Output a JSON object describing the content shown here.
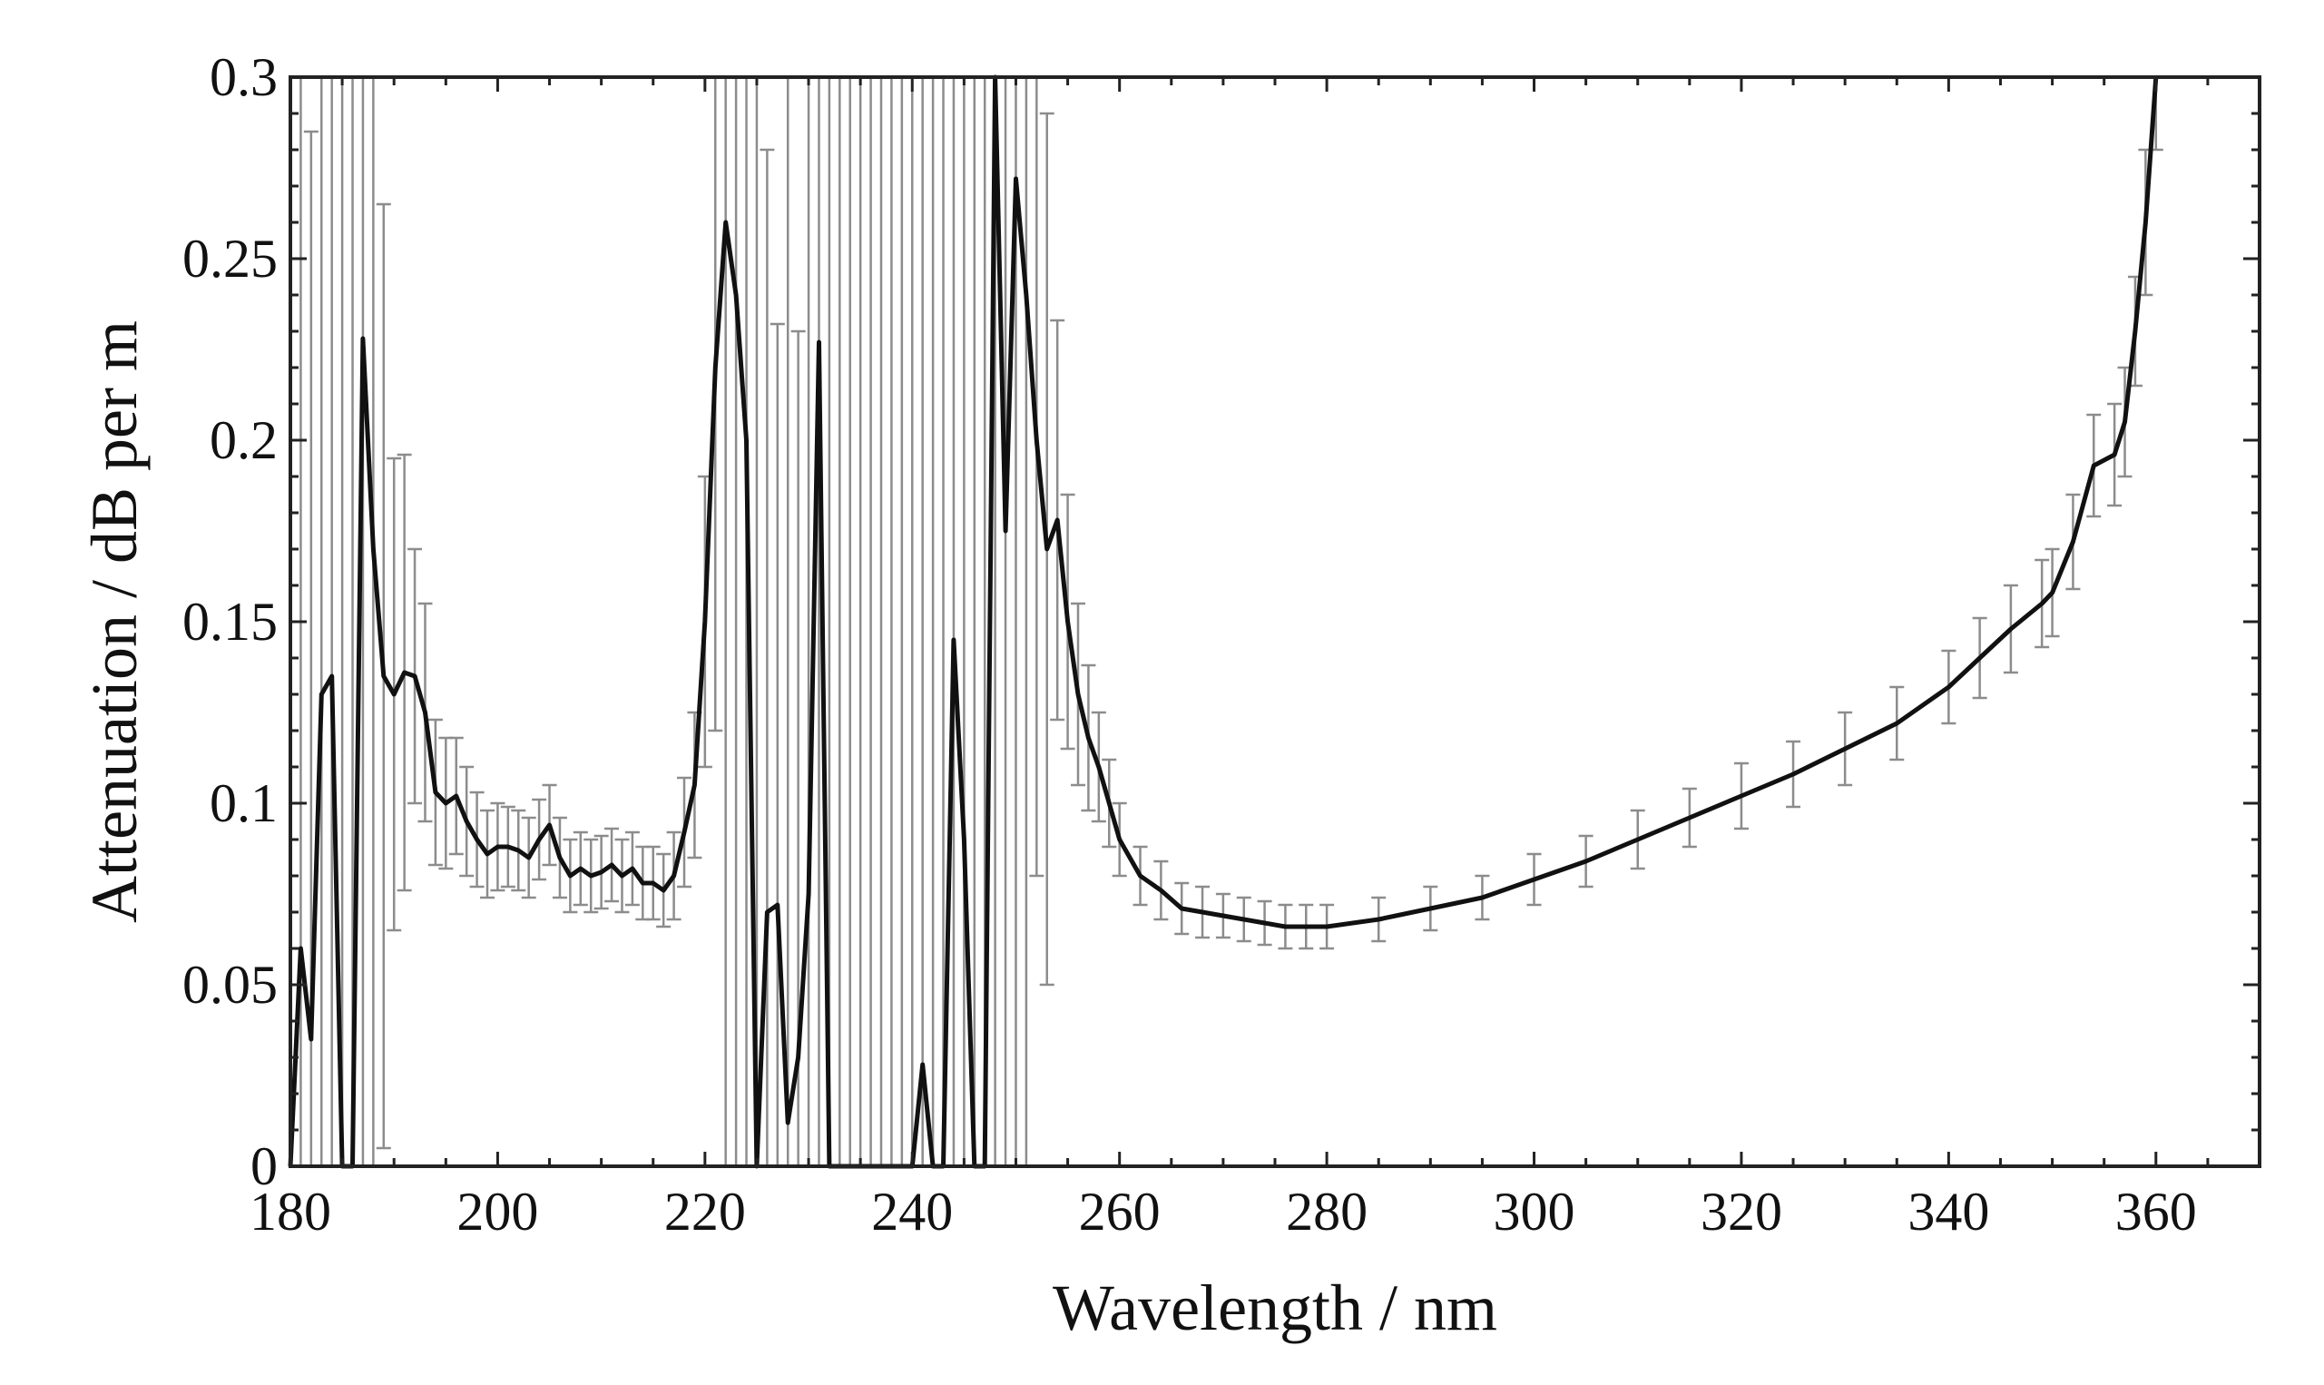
{
  "chart_data": {
    "type": "line",
    "title": "",
    "xlabel": "Wavelength / nm",
    "ylabel": "Attenuation / dB per m",
    "xlim": [
      180,
      370
    ],
    "ylim": [
      0,
      0.3
    ],
    "grid": false,
    "legend": "none",
    "x_ticks": [
      180,
      200,
      220,
      240,
      260,
      280,
      300,
      320,
      340,
      360
    ],
    "x_tick_labels": [
      "180",
      "200",
      "220",
      "240",
      "260",
      "280",
      "300",
      "320",
      "340",
      "360"
    ],
    "y_ticks": [
      0,
      0.05,
      0.1,
      0.15,
      0.2,
      0.25,
      0.3
    ],
    "y_tick_labels": [
      "0",
      "0.05",
      "0.1",
      "0.15",
      "0.2",
      "0.25",
      "0.3"
    ],
    "colors": {
      "line": "#111111",
      "error_bar": "#8c8c8c",
      "frame": "#222222"
    },
    "series": [
      {
        "name": "Attenuation",
        "x": [
          180,
          181,
          182,
          183,
          184,
          185,
          186,
          187,
          188,
          189,
          190,
          191,
          192,
          193,
          194,
          195,
          196,
          197,
          198,
          199,
          200,
          201,
          202,
          203,
          204,
          205,
          206,
          207,
          208,
          209,
          210,
          211,
          212,
          213,
          214,
          215,
          216,
          217,
          218,
          219,
          220,
          221,
          222,
          223,
          224,
          225,
          226,
          227,
          228,
          229,
          230,
          231,
          232,
          233,
          234,
          235,
          236,
          237,
          238,
          239,
          240,
          241,
          242,
          243,
          244,
          245,
          246,
          247,
          248,
          249,
          250,
          251,
          252,
          253,
          254,
          255,
          256,
          257,
          258,
          259,
          260,
          262,
          264,
          266,
          268,
          270,
          272,
          274,
          276,
          278,
          280,
          285,
          290,
          295,
          300,
          305,
          310,
          315,
          320,
          325,
          330,
          335,
          340,
          343,
          346,
          349,
          350,
          352,
          354,
          356,
          357,
          358,
          359,
          360
        ],
        "y": [
          0.0,
          0.06,
          0.035,
          0.13,
          0.135,
          0.0,
          0.0,
          0.228,
          0.17,
          0.135,
          0.13,
          0.136,
          0.135,
          0.125,
          0.103,
          0.1,
          0.102,
          0.095,
          0.09,
          0.086,
          0.088,
          0.088,
          0.087,
          0.085,
          0.09,
          0.094,
          0.085,
          0.08,
          0.082,
          0.08,
          0.081,
          0.083,
          0.08,
          0.082,
          0.078,
          0.078,
          0.076,
          0.08,
          0.092,
          0.105,
          0.15,
          0.22,
          0.26,
          0.24,
          0.2,
          0.0,
          0.07,
          0.072,
          0.012,
          0.03,
          0.075,
          0.227,
          0.0,
          0.0,
          0.0,
          0.0,
          0.0,
          0.0,
          0.0,
          0.0,
          0.0,
          0.028,
          0.0,
          0.0,
          0.145,
          0.09,
          0.0,
          0.0,
          0.3,
          0.175,
          0.272,
          0.24,
          0.2,
          0.17,
          0.178,
          0.15,
          0.13,
          0.118,
          0.11,
          0.1,
          0.09,
          0.08,
          0.076,
          0.071,
          0.07,
          0.069,
          0.068,
          0.067,
          0.066,
          0.066,
          0.066,
          0.068,
          0.071,
          0.074,
          0.079,
          0.084,
          0.09,
          0.096,
          0.102,
          0.108,
          0.115,
          0.122,
          0.132,
          0.14,
          0.148,
          0.155,
          0.158,
          0.172,
          0.193,
          0.196,
          0.205,
          0.23,
          0.26,
          0.3
        ],
        "error": [
          0.3,
          0.3,
          0.25,
          0.2,
          0.18,
          0.3,
          0.3,
          0.3,
          0.28,
          0.13,
          0.065,
          0.06,
          0.035,
          0.03,
          0.02,
          0.018,
          0.016,
          0.015,
          0.013,
          0.012,
          0.012,
          0.011,
          0.011,
          0.011,
          0.011,
          0.011,
          0.011,
          0.01,
          0.01,
          0.01,
          0.01,
          0.01,
          0.01,
          0.01,
          0.01,
          0.01,
          0.01,
          0.012,
          0.015,
          0.02,
          0.04,
          0.1,
          0.3,
          0.3,
          0.3,
          0.3,
          0.21,
          0.16,
          0.3,
          0.2,
          0.3,
          0.3,
          0.3,
          0.3,
          0.3,
          0.3,
          0.3,
          0.3,
          0.3,
          0.3,
          0.3,
          0.3,
          0.3,
          0.3,
          0.3,
          0.3,
          0.3,
          0.3,
          0.3,
          0.3,
          0.3,
          0.3,
          0.12,
          0.12,
          0.055,
          0.035,
          0.025,
          0.02,
          0.015,
          0.012,
          0.01,
          0.008,
          0.008,
          0.007,
          0.007,
          0.006,
          0.006,
          0.006,
          0.006,
          0.006,
          0.006,
          0.006,
          0.006,
          0.006,
          0.007,
          0.007,
          0.008,
          0.008,
          0.009,
          0.009,
          0.01,
          0.01,
          0.01,
          0.011,
          0.012,
          0.012,
          0.012,
          0.013,
          0.014,
          0.014,
          0.015,
          0.015,
          0.02,
          0.02
        ]
      }
    ]
  }
}
